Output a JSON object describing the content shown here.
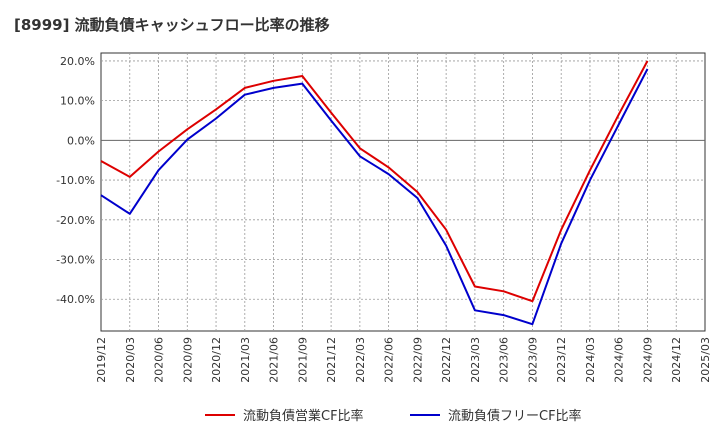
{
  "chart_data": {
    "type": "line",
    "title": "[8999]  流動負債キャッシュフロー比率の推移",
    "xlabel": "",
    "ylabel": "",
    "x": [
      "2019/12",
      "2020/03",
      "2020/06",
      "2020/09",
      "2020/12",
      "2021/03",
      "2021/06",
      "2021/09",
      "2021/12",
      "2022/03",
      "2022/06",
      "2022/09",
      "2022/12",
      "2023/03",
      "2023/06",
      "2023/09",
      "2023/12",
      "2024/03",
      "2024/06",
      "2024/09",
      "2024/12",
      "2025/03"
    ],
    "ylim": [
      -48,
      22
    ],
    "yticks": [
      20,
      10,
      0,
      -10,
      -20,
      -30,
      -40
    ],
    "ytick_labels": [
      "20.0%",
      "10.0%",
      "0.0%",
      "-10.0%",
      "-20.0%",
      "-30.0%",
      "-40.0%"
    ],
    "grid": true,
    "legend_position": "bottom",
    "series": [
      {
        "name": "流動負債営業CF比率",
        "color": "#dd0000",
        "values": [
          -5.2,
          -9.2,
          -2.8,
          2.8,
          7.8,
          13.2,
          15.0,
          16.2,
          7.0,
          -2.0,
          -6.8,
          -13.0,
          -22.5,
          -36.8,
          -38.0,
          -40.5,
          -22.5,
          -7.5,
          6.5,
          20.0,
          null,
          null
        ]
      },
      {
        "name": "流動負債フリーCF比率",
        "color": "#0000cc",
        "values": [
          -13.8,
          -18.5,
          -7.5,
          0.2,
          5.5,
          11.5,
          13.2,
          14.3,
          5.0,
          -4.0,
          -8.5,
          -14.5,
          -26.5,
          -42.8,
          -44.0,
          -46.3,
          -26.0,
          -10.0,
          4.0,
          18.0,
          null,
          null
        ]
      }
    ]
  }
}
